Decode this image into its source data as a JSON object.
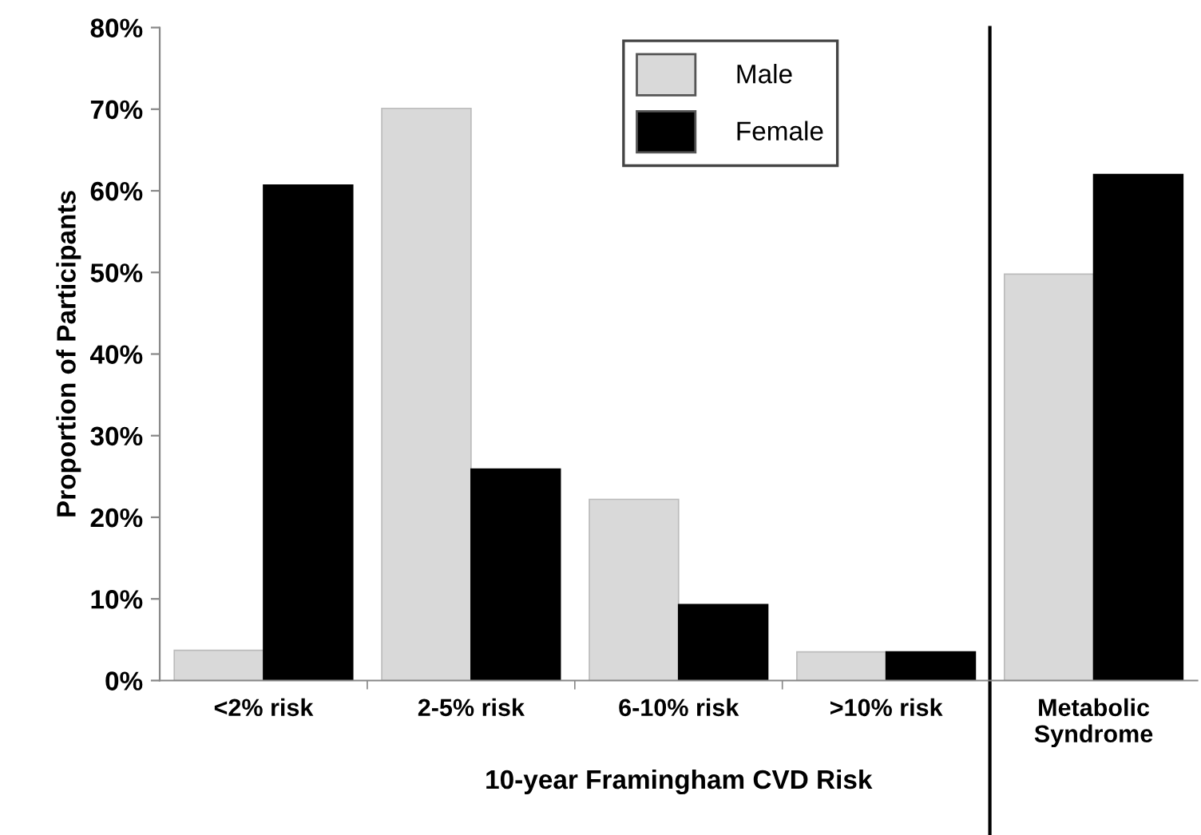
{
  "chart_data": {
    "type": "bar",
    "xlabel": "10-year Framingham CVD Risk",
    "ylabel": "Proportion of Participants",
    "categories": [
      "<2% risk",
      "2-5% risk",
      "6-10% risk",
      ">10% risk",
      "Metabolic\nSyndrome"
    ],
    "series": [
      {
        "name": "Male",
        "color": "#d9d9d9",
        "values": [
          3.7,
          70.1,
          22.2,
          3.5,
          49.8
        ]
      },
      {
        "name": "Female",
        "color": "#000000",
        "values": [
          60.7,
          25.9,
          9.3,
          3.5,
          62.0
        ]
      }
    ],
    "ylim": [
      0,
      80
    ],
    "yticks": [
      {
        "value": 0,
        "label": "0%"
      },
      {
        "value": 10,
        "label": "10%"
      },
      {
        "value": 20,
        "label": "20%"
      },
      {
        "value": 30,
        "label": "30%"
      },
      {
        "value": 40,
        "label": "40%"
      },
      {
        "value": 50,
        "label": "50%"
      },
      {
        "value": 60,
        "label": "60%"
      },
      {
        "value": 70,
        "label": "70%"
      },
      {
        "value": 80,
        "label": "80%"
      }
    ],
    "grid": false,
    "legend": "top"
  }
}
